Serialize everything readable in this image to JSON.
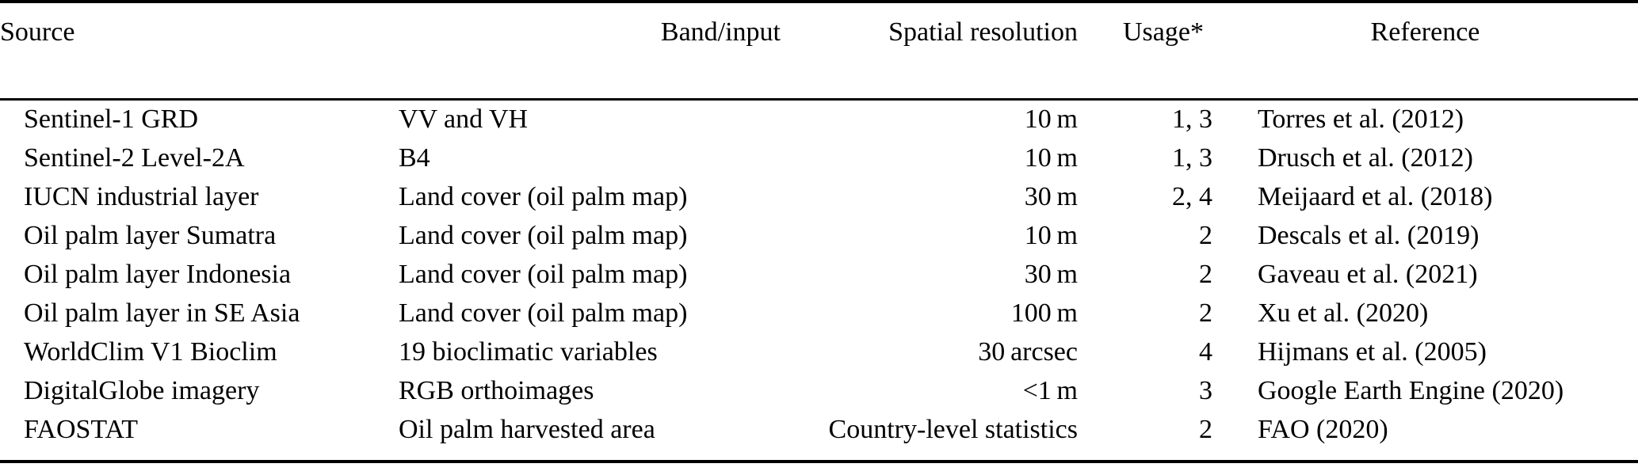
{
  "page": {
    "background_color": "#ffffff",
    "text_color": "#000000",
    "rule_color": "#000000"
  },
  "table": {
    "description_name": "data-sources-table",
    "columns": [
      {
        "label": "Source",
        "align": "left"
      },
      {
        "label": "Band/input",
        "align": "left"
      },
      {
        "label": "Spatial resolution",
        "align": "right"
      },
      {
        "label": "Usage*",
        "align": "right"
      },
      {
        "label": "Reference",
        "align": "left"
      }
    ],
    "rows": [
      {
        "source": "Sentinel-1 GRD",
        "band_input": "VV and VH",
        "spatial_resolution": "10 m",
        "usage": "1, 3",
        "reference": "Torres et al. (2012)"
      },
      {
        "source": "Sentinel-2 Level-2A",
        "band_input": "B4",
        "spatial_resolution": "10 m",
        "usage": "1, 3",
        "reference": "Drusch et al. (2012)"
      },
      {
        "source": "IUCN industrial layer",
        "band_input": "Land cover (oil palm map)",
        "spatial_resolution": "30 m",
        "usage": "2, 4",
        "reference": "Meijaard et al. (2018)"
      },
      {
        "source": "Oil palm layer Sumatra",
        "band_input": "Land cover (oil palm map)",
        "spatial_resolution": "10 m",
        "usage": "2",
        "reference": "Descals et al. (2019)"
      },
      {
        "source": "Oil palm layer Indonesia",
        "band_input": "Land cover (oil palm map)",
        "spatial_resolution": "30 m",
        "usage": "2",
        "reference": "Gaveau et al. (2021)"
      },
      {
        "source": "Oil palm layer in SE Asia",
        "band_input": "Land cover (oil palm map)",
        "spatial_resolution": "100 m",
        "usage": "2",
        "reference": "Xu et al. (2020)"
      },
      {
        "source": "WorldClim V1 Bioclim",
        "band_input": "19 bioclimatic variables",
        "spatial_resolution": "30 arcsec",
        "usage": "4",
        "reference": "Hijmans et al. (2005)"
      },
      {
        "source": "DigitalGlobe imagery",
        "band_input": "RGB orthoimages",
        "spatial_resolution": "<1 m",
        "usage": "3",
        "reference": "Google Earth Engine (2020)"
      },
      {
        "source": "FAOSTAT",
        "band_input": "Oil palm harvested area",
        "spatial_resolution": "Country-level statistics",
        "usage": "2",
        "reference": "FAO (2020)"
      }
    ]
  }
}
